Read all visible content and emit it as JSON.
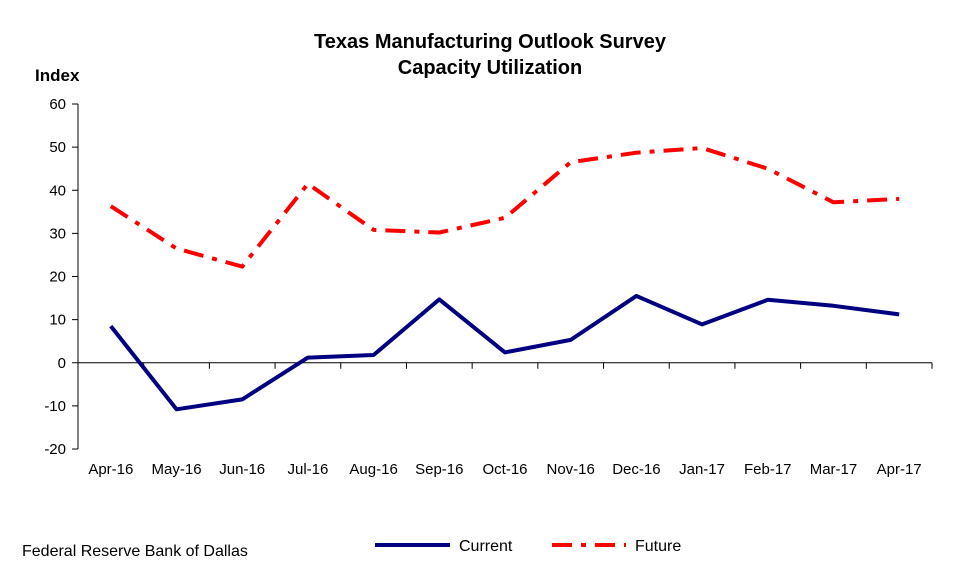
{
  "chart_data": {
    "type": "line",
    "title": "Texas Manufacturing Outlook Survey",
    "subtitle": "Capacity Utilization",
    "ylabel": "Index",
    "xlabel": "",
    "ylim": [
      -20,
      60
    ],
    "yticks": [
      -20,
      -10,
      0,
      10,
      20,
      30,
      40,
      50,
      60
    ],
    "categories": [
      "Apr-16",
      "May-16",
      "Jun-16",
      "Jul-16",
      "Aug-16",
      "Sep-16",
      "Oct-16",
      "Nov-16",
      "Dec-16",
      "Jan-17",
      "Feb-17",
      "Mar-17",
      "Apr-17"
    ],
    "series": [
      {
        "name": "Current",
        "color": "#000080",
        "style": "solid",
        "values": [
          8.5,
          -10.8,
          -8.5,
          1.2,
          1.8,
          14.7,
          2.4,
          5.3,
          15.5,
          8.9,
          14.6,
          13.2,
          11.2
        ]
      },
      {
        "name": "Future",
        "color": "#ff0000",
        "style": "dash-dot",
        "values": [
          36.3,
          26.5,
          22.3,
          41.5,
          30.8,
          30.2,
          33.6,
          46.5,
          48.7,
          49.8,
          45.0,
          37.2,
          38.0
        ]
      }
    ],
    "grid": false,
    "legend_position": "bottom"
  },
  "source": "Federal Reserve Bank of Dallas"
}
